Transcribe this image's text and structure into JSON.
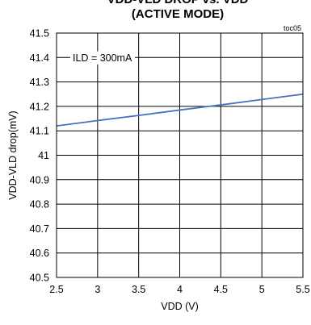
{
  "chart_data": {
    "type": "line",
    "title_line1": "VDD-VLD DROP vs. VDD",
    "title_line2": "(ACTIVE MODE)",
    "tag": "toc05",
    "annotation": "ILD = 300mA",
    "xlabel": "VDD (V)",
    "ylabel": "VDD-VLD drop(mV)",
    "xlim": [
      2.5,
      5.5
    ],
    "ylim": [
      40.5,
      41.5
    ],
    "x_ticks": [
      2.5,
      3,
      3.5,
      4,
      4.5,
      5,
      5.5
    ],
    "x_tick_labels": [
      "2.5",
      "3",
      "3.5",
      "4",
      "4.5",
      "5",
      "5.5"
    ],
    "y_ticks": [
      40.5,
      40.6,
      40.7,
      40.8,
      40.9,
      41,
      41.1,
      41.2,
      41.3,
      41.4,
      41.5
    ],
    "y_tick_labels": [
      "40.5",
      "40.6",
      "40.7",
      "40.8",
      "40.9",
      "41",
      "41.1",
      "41.2",
      "41.3",
      "41.4",
      "41.5"
    ],
    "grid": true,
    "series": [
      {
        "x": [
          2.5,
          3,
          3.5,
          4,
          4.5,
          5,
          5.5
        ],
        "y": [
          41.12,
          41.142,
          41.163,
          41.185,
          41.206,
          41.228,
          41.25
        ],
        "color": "#4472c4"
      }
    ]
  }
}
